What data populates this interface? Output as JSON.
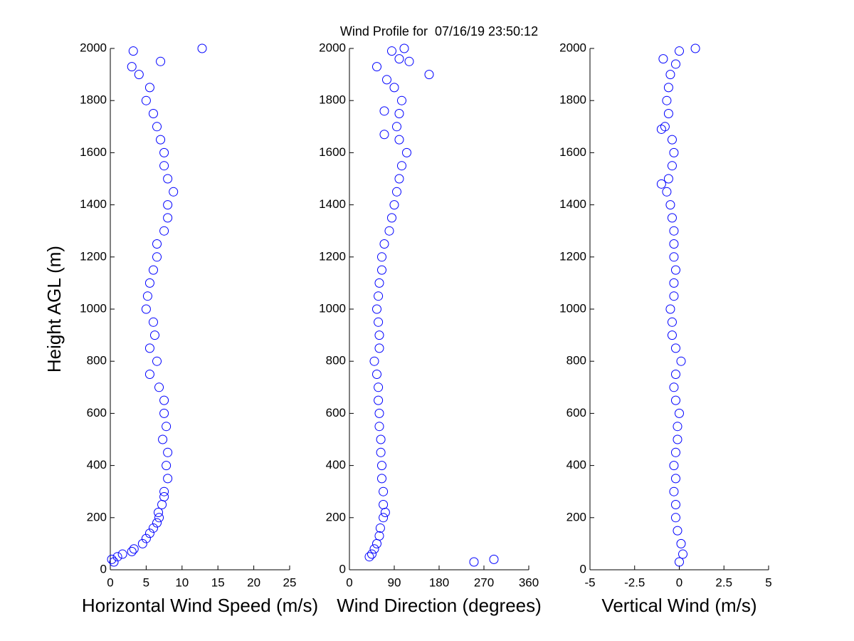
{
  "title": "Wind Profile for  07/16/19 23:50:12",
  "chart_data": [
    {
      "type": "scatter",
      "xlabel": "Horizontal Wind Speed (m/s)",
      "ylabel": "Height AGL (m)",
      "color": "#0000ff",
      "xlim": [
        0,
        25
      ],
      "xticks": [
        0,
        5,
        10,
        15,
        20,
        25
      ],
      "ylim": [
        0,
        2000
      ],
      "yticks": [
        0,
        200,
        400,
        600,
        800,
        1000,
        1200,
        1400,
        1600,
        1800,
        2000
      ],
      "x": [
        0.5,
        0.2,
        1.0,
        1.7,
        3.0,
        3.3,
        4.5,
        5.0,
        5.5,
        6.0,
        6.5,
        6.8,
        6.7,
        7.2,
        7.5,
        7.5,
        8.0,
        7.8,
        8.0,
        7.3,
        7.8,
        7.5,
        7.5,
        6.8,
        5.5,
        6.5,
        5.5,
        6.2,
        6.0,
        5.0,
        5.2,
        5.5,
        6.0,
        6.5,
        6.5,
        7.5,
        8.0,
        8.0,
        8.8,
        8.0,
        7.5,
        7.5,
        7.0,
        6.5,
        6.0,
        5.0,
        5.5,
        4.0,
        3.0,
        7.0,
        3.2,
        12.8
      ],
      "y": [
        30,
        40,
        50,
        60,
        70,
        80,
        100,
        120,
        140,
        160,
        180,
        200,
        220,
        250,
        280,
        300,
        350,
        400,
        450,
        500,
        550,
        600,
        650,
        700,
        750,
        800,
        850,
        900,
        950,
        1000,
        1050,
        1100,
        1150,
        1200,
        1250,
        1300,
        1350,
        1400,
        1450,
        1500,
        1550,
        1600,
        1650,
        1700,
        1750,
        1800,
        1850,
        1900,
        1930,
        1950,
        1990,
        2000
      ]
    },
    {
      "type": "scatter",
      "xlabel": "Wind Direction (degrees)",
      "color": "#0000ff",
      "xlim": [
        0,
        360
      ],
      "xticks": [
        0,
        90,
        180,
        270,
        360
      ],
      "ylim": [
        0,
        2000
      ],
      "yticks": [
        0,
        200,
        400,
        600,
        800,
        1000,
        1200,
        1400,
        1600,
        1800,
        2000
      ],
      "x": [
        250,
        290,
        40,
        45,
        50,
        55,
        60,
        62,
        68,
        72,
        68,
        68,
        65,
        65,
        63,
        63,
        60,
        60,
        58,
        58,
        55,
        50,
        60,
        60,
        58,
        55,
        58,
        60,
        65,
        65,
        70,
        80,
        85,
        90,
        95,
        100,
        105,
        115,
        100,
        70,
        95,
        100,
        70,
        105,
        90,
        75,
        160,
        55,
        120,
        100,
        85,
        110
      ],
      "y": [
        30,
        40,
        50,
        60,
        80,
        100,
        130,
        160,
        200,
        220,
        250,
        300,
        350,
        400,
        450,
        500,
        550,
        600,
        650,
        700,
        750,
        800,
        850,
        900,
        950,
        1000,
        1050,
        1100,
        1150,
        1200,
        1250,
        1300,
        1350,
        1400,
        1450,
        1500,
        1550,
        1600,
        1650,
        1670,
        1700,
        1750,
        1760,
        1800,
        1850,
        1880,
        1900,
        1930,
        1950,
        1960,
        1990,
        2000
      ]
    },
    {
      "type": "scatter",
      "xlabel": "Vertical Wind (m/s)",
      "color": "#0000ff",
      "xlim": [
        -5,
        5
      ],
      "xticks": [
        -5,
        -2.5,
        0,
        2.5,
        5
      ],
      "ylim": [
        0,
        2000
      ],
      "yticks": [
        0,
        200,
        400,
        600,
        800,
        1000,
        1200,
        1400,
        1600,
        1800,
        2000
      ],
      "x": [
        0,
        0.2,
        0.1,
        -0.1,
        -0.2,
        -0.2,
        -0.3,
        -0.2,
        -0.3,
        -0.2,
        -0.1,
        -0.1,
        0,
        -0.2,
        -0.3,
        -0.2,
        0.1,
        -0.2,
        -0.4,
        -0.4,
        -0.5,
        -0.3,
        -0.3,
        -0.2,
        -0.3,
        -0.3,
        -0.3,
        -0.4,
        -0.5,
        -0.7,
        -1.0,
        -0.6,
        -0.4,
        -0.3,
        -0.4,
        -1.0,
        -0.8,
        -0.6,
        -0.7,
        -0.6,
        -0.5,
        -0.2,
        -0.9,
        0,
        0.9
      ],
      "y": [
        30,
        60,
        100,
        150,
        200,
        250,
        300,
        350,
        400,
        450,
        500,
        550,
        600,
        650,
        700,
        750,
        800,
        850,
        900,
        950,
        1000,
        1050,
        1100,
        1150,
        1200,
        1250,
        1300,
        1350,
        1400,
        1450,
        1480,
        1500,
        1550,
        1600,
        1650,
        1690,
        1700,
        1750,
        1800,
        1850,
        1900,
        1940,
        1960,
        1990,
        2000
      ]
    }
  ]
}
